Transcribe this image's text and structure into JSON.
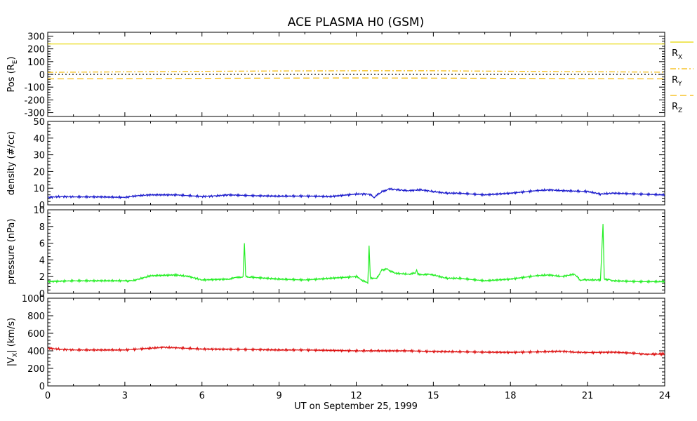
{
  "title": "ACE PLASMA H0 (GSM)",
  "xlabel": "UT on September 25, 1999",
  "chart_data": [
    {
      "type": "line",
      "id": "pos",
      "ylabel_main": "Pos (R",
      "ylabel_sub": "E",
      "ylabel_end": ")",
      "ylim": [
        -330,
        330
      ],
      "yticks": [
        300,
        200,
        100,
        0,
        -100,
        -200,
        -300
      ],
      "grid": false,
      "legend_position": "right",
      "series": [
        {
          "name": "X",
          "color": "#e8d800",
          "dash": "solid",
          "x": [
            0,
            24
          ],
          "values": [
            238,
            238
          ]
        },
        {
          "name": "Y",
          "color": "#f5b800",
          "dash": "8,3,2,3",
          "x": [
            0,
            3,
            6,
            9,
            12,
            15,
            18,
            21,
            24
          ],
          "values": [
            16,
            20,
            24,
            27,
            28,
            28,
            25,
            21,
            17
          ]
        },
        {
          "name": "Z",
          "color": "#f5b800",
          "dash": "9,5",
          "x": [
            0,
            3,
            6,
            9,
            12,
            15,
            18,
            21,
            24
          ],
          "values": [
            -35,
            -33,
            -31,
            -29,
            -28,
            -29,
            -31,
            -33,
            -35
          ]
        },
        {
          "name": "",
          "color": "#000000",
          "dash": "2,3",
          "x": [
            0,
            24
          ],
          "values": [
            0,
            0
          ]
        }
      ],
      "legend": [
        {
          "base": "R",
          "sub": "X"
        },
        {
          "base": "R",
          "sub": "Y"
        },
        {
          "base": "R",
          "sub": "Z"
        }
      ]
    },
    {
      "type": "line",
      "id": "density",
      "ylabel_main": "density (#/cc)",
      "ylim": [
        0,
        50
      ],
      "yticks": [
        50,
        40,
        30,
        20,
        10,
        0
      ],
      "grid": false,
      "series": [
        {
          "color": "#1a1acc",
          "x": [
            0,
            0.5,
            1,
            2,
            3,
            3.5,
            4,
            5,
            6,
            6.5,
            7,
            8,
            9,
            10,
            11,
            12,
            12.5,
            12.7,
            13,
            13.3,
            14,
            14.5,
            15,
            15.5,
            16,
            17,
            18,
            19,
            19.5,
            20,
            21,
            21.5,
            22,
            23,
            24
          ],
          "values": [
            4.5,
            5,
            4.8,
            4.8,
            4.5,
            5.5,
            6,
            6,
            5,
            5.3,
            6,
            5.5,
            5.2,
            5.3,
            5,
            6.5,
            6.5,
            4.5,
            8,
            9.5,
            8.5,
            9,
            8,
            7,
            7,
            6,
            7,
            8.5,
            9,
            8.5,
            8,
            6.5,
            7,
            6.5,
            6
          ]
        }
      ]
    },
    {
      "type": "line",
      "id": "pressure",
      "ylabel_main": "pressure (nPa)",
      "ylim": [
        0,
        10
      ],
      "yticks": [
        10,
        8,
        6,
        4,
        2,
        0
      ],
      "grid": false,
      "series": [
        {
          "color": "#22ee22",
          "x": [
            0,
            1,
            2,
            3,
            3.3,
            4,
            5,
            5.5,
            6,
            7,
            7.6,
            7.65,
            7.7,
            8,
            9,
            10,
            11,
            12,
            12.45,
            12.5,
            12.55,
            12.8,
            13,
            13.2,
            13.5,
            14,
            14.3,
            14.35,
            14.4,
            15,
            15.5,
            16,
            17,
            18,
            19,
            19.5,
            20,
            20.5,
            20.7,
            21,
            21.5,
            21.6,
            21.65,
            21.7,
            22,
            23,
            24
          ],
          "values": [
            1.4,
            1.5,
            1.5,
            1.5,
            1.5,
            2.1,
            2.2,
            2.0,
            1.6,
            1.7,
            2.0,
            6.0,
            2.0,
            1.9,
            1.7,
            1.6,
            1.8,
            2.0,
            1.2,
            5.7,
            1.8,
            1.8,
            2.8,
            2.9,
            2.4,
            2.3,
            2.4,
            2.8,
            2.3,
            2.2,
            1.8,
            1.8,
            1.5,
            1.7,
            2.1,
            2.2,
            2.0,
            2.3,
            1.6,
            1.6,
            1.6,
            8.3,
            1.7,
            1.7,
            1.5,
            1.4,
            1.4
          ]
        }
      ]
    },
    {
      "type": "line",
      "id": "vx",
      "ylabel_main": "|V",
      "ylabel_sub": "X",
      "ylabel_end": "| (km/s)",
      "ylim": [
        0,
        1000
      ],
      "yticks": [
        1000,
        800,
        600,
        400,
        200,
        0
      ],
      "grid": false,
      "series": [
        {
          "color": "#dd1111",
          "x": [
            0,
            0.5,
            1,
            2,
            3,
            4,
            4.5,
            5,
            6,
            7,
            8,
            9,
            10,
            11,
            12,
            13,
            14,
            15,
            16,
            17,
            18,
            19,
            20,
            20.5,
            21,
            22,
            23,
            23.2,
            24
          ],
          "values": [
            430,
            418,
            410,
            410,
            410,
            430,
            440,
            435,
            420,
            418,
            415,
            410,
            410,
            405,
            400,
            400,
            400,
            392,
            390,
            385,
            383,
            388,
            395,
            385,
            380,
            385,
            370,
            360,
            365
          ]
        }
      ]
    }
  ],
  "xticks": [
    0,
    3,
    6,
    9,
    12,
    15,
    18,
    21,
    24
  ]
}
